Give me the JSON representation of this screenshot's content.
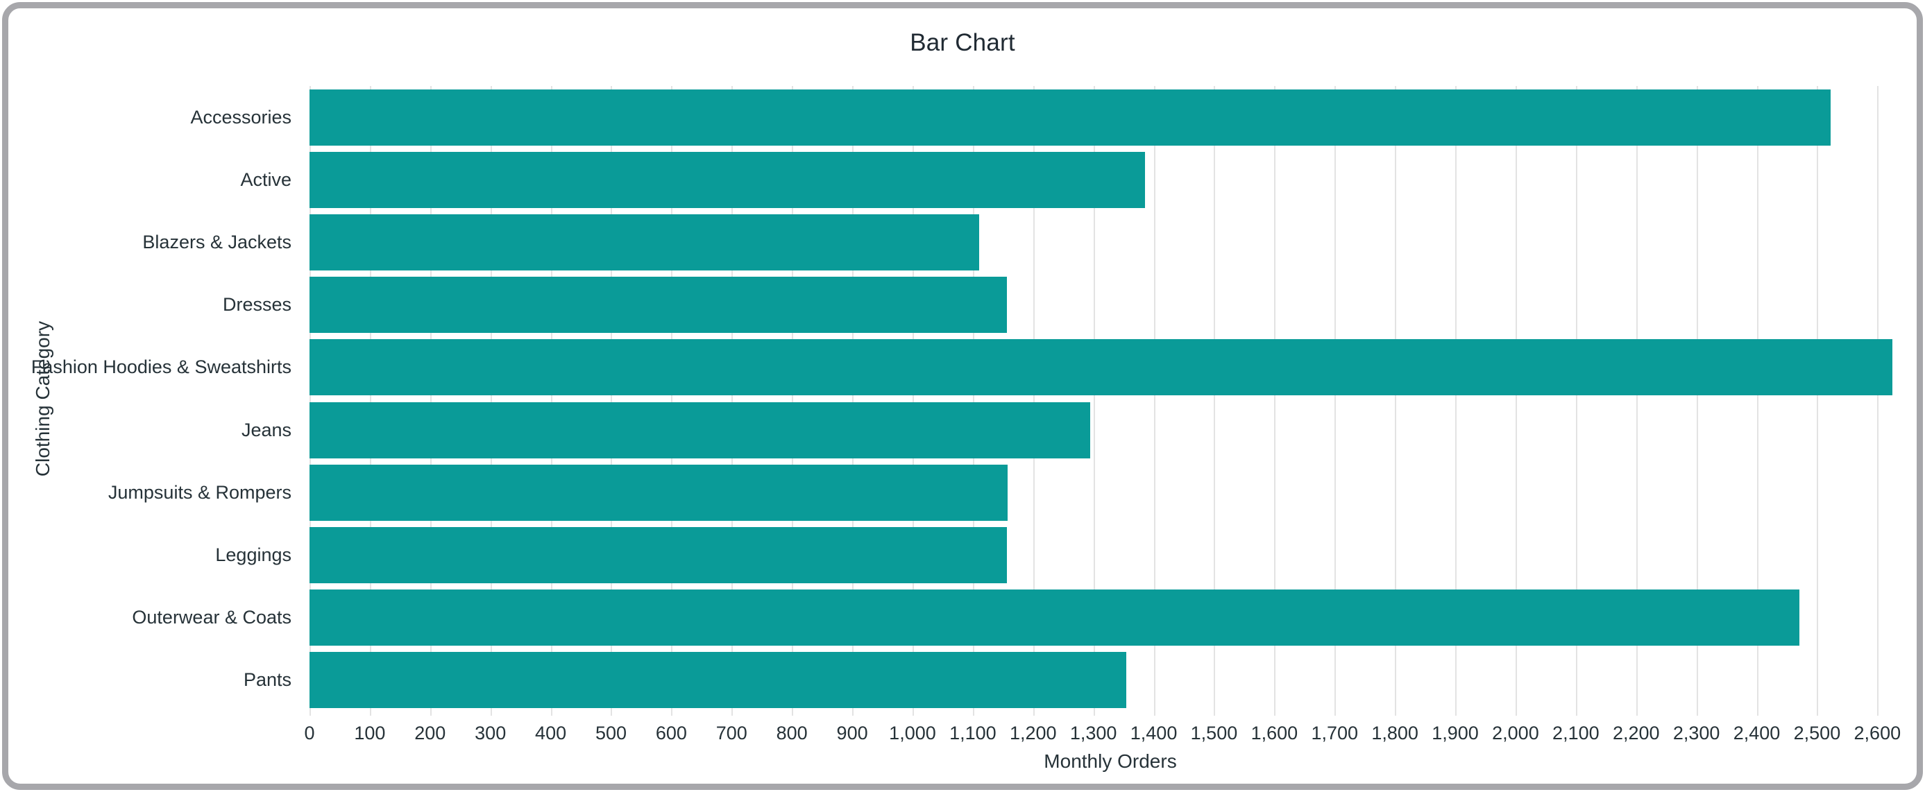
{
  "chart_data": {
    "type": "bar",
    "orientation": "horizontal",
    "title": "Bar Chart",
    "xlabel": "Monthly Orders",
    "ylabel": "Clothing Category",
    "categories": [
      "Accessories",
      "Active",
      "Blazers & Jackets",
      "Dresses",
      "Fashion Hoodies & Sweatshirts",
      "Jeans",
      "Jumpsuits & Rompers",
      "Leggings",
      "Outerwear & Coats",
      "Pants"
    ],
    "values": [
      2523,
      1386,
      1110,
      1157,
      2625,
      1295,
      1158,
      1156,
      2471,
      1355
    ],
    "xlim": [
      0,
      2656
    ],
    "xtick_step": 100,
    "xtick_max": 2600,
    "xtick_labels": [
      "0",
      "100",
      "200",
      "300",
      "400",
      "500",
      "600",
      "700",
      "800",
      "900",
      "1,000",
      "1,100",
      "1,200",
      "1,300",
      "1,400",
      "1,500",
      "1,600",
      "1,700",
      "1,800",
      "1,900",
      "2,000",
      "2,100",
      "2,200",
      "2,300",
      "2,400",
      "2,500",
      "2,600"
    ],
    "grid": "vertical",
    "legend": "none",
    "colors": {
      "bar": "#0a9b98",
      "gridline": "#e3e3e3",
      "text": "#263238",
      "frame_border": "#a7a7ab",
      "background": "#ffffff"
    }
  }
}
